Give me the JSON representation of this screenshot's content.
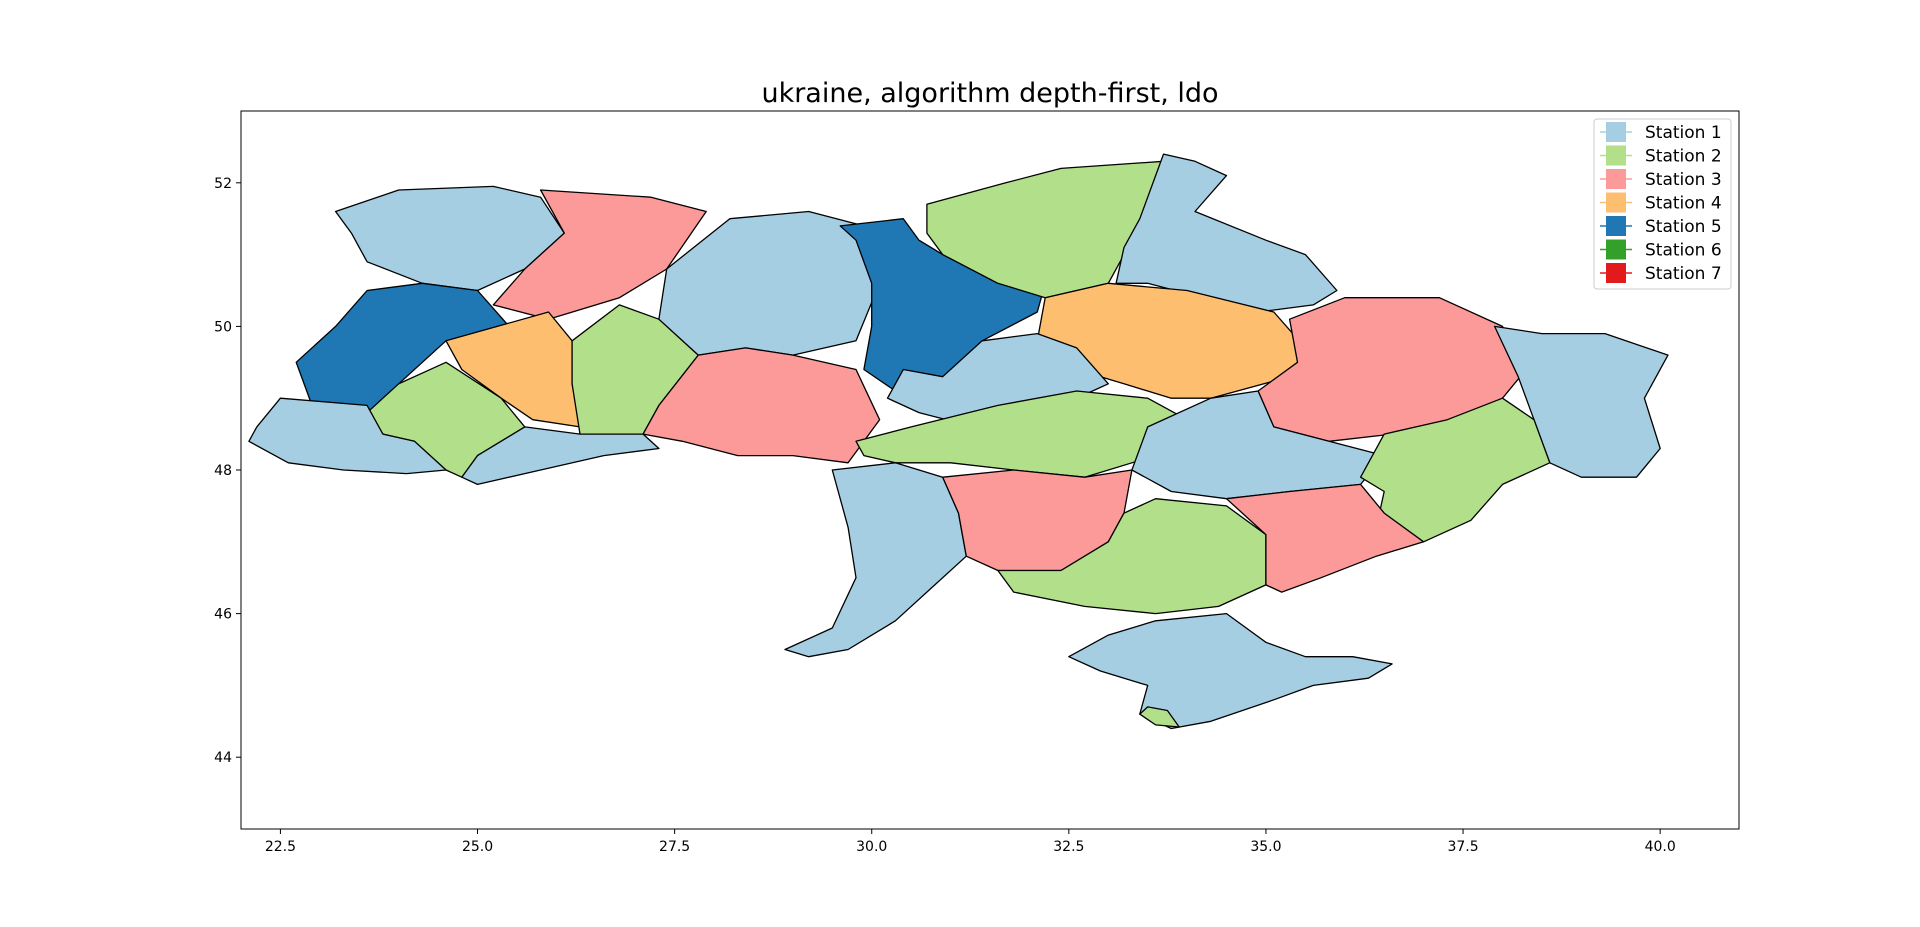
{
  "title": "ukraine, algorithm depth-first, ldo",
  "axes": {
    "xlim": [
      22.0,
      41.0
    ],
    "ylim": [
      43.0,
      53.0
    ],
    "xticks": [
      "22.5",
      "25.0",
      "27.5",
      "30.0",
      "32.5",
      "35.0",
      "37.5",
      "40.0"
    ],
    "yticks": [
      "44",
      "46",
      "48",
      "50",
      "52"
    ]
  },
  "legend": {
    "placement": "upper-right",
    "items": [
      {
        "label": "Station 1",
        "color": "#a6cee3"
      },
      {
        "label": "Station 2",
        "color": "#b2df8a"
      },
      {
        "label": "Station 3",
        "color": "#fb9a99"
      },
      {
        "label": "Station 4",
        "color": "#fdbf6f"
      },
      {
        "label": "Station 5",
        "color": "#1f78b4"
      },
      {
        "label": "Station 6",
        "color": "#33a02c"
      },
      {
        "label": "Station 7",
        "color": "#e31a1c"
      }
    ]
  },
  "regions": [
    {
      "station": 1,
      "poly": [
        [
          23.2,
          51.6
        ],
        [
          24.0,
          51.9
        ],
        [
          25.2,
          51.95
        ],
        [
          25.8,
          51.8
        ],
        [
          26.1,
          51.3
        ],
        [
          25.6,
          50.8
        ],
        [
          25.0,
          50.5
        ],
        [
          24.3,
          50.6
        ],
        [
          23.6,
          50.9
        ],
        [
          23.4,
          51.3
        ]
      ]
    },
    {
      "station": 3,
      "poly": [
        [
          25.8,
          51.9
        ],
        [
          27.2,
          51.8
        ],
        [
          27.9,
          51.6
        ],
        [
          27.4,
          50.8
        ],
        [
          26.8,
          50.4
        ],
        [
          25.9,
          50.1
        ],
        [
          25.2,
          50.3
        ],
        [
          25.6,
          50.8
        ],
        [
          26.1,
          51.3
        ]
      ]
    },
    {
      "station": 5,
      "poly": [
        [
          23.6,
          50.5
        ],
        [
          24.3,
          50.6
        ],
        [
          25.0,
          50.5
        ],
        [
          25.4,
          50.0
        ],
        [
          24.6,
          49.8
        ],
        [
          24.0,
          49.2
        ],
        [
          23.6,
          48.7
        ],
        [
          22.9,
          48.9
        ],
        [
          22.7,
          49.5
        ],
        [
          23.2,
          50.0
        ]
      ]
    },
    {
      "station": 4,
      "poly": [
        [
          24.6,
          49.8
        ],
        [
          25.9,
          50.2
        ],
        [
          26.2,
          49.8
        ],
        [
          26.2,
          49.2
        ],
        [
          26.3,
          48.6
        ],
        [
          25.7,
          48.7
        ],
        [
          25.3,
          49.0
        ],
        [
          24.8,
          49.4
        ]
      ]
    },
    {
      "station": 2,
      "poly": [
        [
          26.2,
          49.8
        ],
        [
          26.8,
          50.3
        ],
        [
          27.3,
          50.1
        ],
        [
          27.8,
          49.6
        ],
        [
          27.3,
          48.9
        ],
        [
          27.1,
          48.5
        ],
        [
          26.3,
          48.5
        ],
        [
          26.2,
          49.2
        ]
      ]
    },
    {
      "station": 2,
      "poly": [
        [
          23.6,
          48.8
        ],
        [
          24.0,
          49.2
        ],
        [
          24.6,
          49.5
        ],
        [
          25.3,
          49.0
        ],
        [
          25.6,
          48.6
        ],
        [
          25.0,
          48.2
        ],
        [
          24.8,
          47.9
        ],
        [
          24.6,
          48.0
        ],
        [
          24.2,
          48.4
        ],
        [
          23.8,
          48.5
        ]
      ]
    },
    {
      "station": 1,
      "poly": [
        [
          22.2,
          48.6
        ],
        [
          22.5,
          49.0
        ],
        [
          23.6,
          48.9
        ],
        [
          23.8,
          48.5
        ],
        [
          24.2,
          48.4
        ],
        [
          24.6,
          48.0
        ],
        [
          24.1,
          47.95
        ],
        [
          23.3,
          48.0
        ],
        [
          22.6,
          48.1
        ],
        [
          22.1,
          48.4
        ]
      ]
    },
    {
      "station": 1,
      "poly": [
        [
          25.6,
          48.6
        ],
        [
          26.3,
          48.5
        ],
        [
          27.1,
          48.5
        ],
        [
          27.3,
          48.3
        ],
        [
          26.6,
          48.2
        ],
        [
          25.8,
          48.0
        ],
        [
          25.0,
          47.8
        ],
        [
          24.8,
          47.9
        ],
        [
          25.0,
          48.2
        ]
      ]
    },
    {
      "station": 1,
      "poly": [
        [
          27.4,
          50.8
        ],
        [
          28.2,
          51.5
        ],
        [
          29.2,
          51.6
        ],
        [
          29.9,
          51.4
        ],
        [
          30.1,
          50.6
        ],
        [
          29.8,
          49.8
        ],
        [
          29.0,
          49.6
        ],
        [
          28.4,
          49.7
        ],
        [
          27.8,
          49.6
        ],
        [
          27.3,
          50.1
        ]
      ]
    },
    {
      "station": 3,
      "poly": [
        [
          27.3,
          48.9
        ],
        [
          27.8,
          49.6
        ],
        [
          28.4,
          49.7
        ],
        [
          29.0,
          49.6
        ],
        [
          29.8,
          49.4
        ],
        [
          30.1,
          48.7
        ],
        [
          29.7,
          48.1
        ],
        [
          29.0,
          48.2
        ],
        [
          28.3,
          48.2
        ],
        [
          27.6,
          48.4
        ],
        [
          27.1,
          48.5
        ]
      ]
    },
    {
      "station": 5,
      "poly": [
        [
          29.6,
          51.4
        ],
        [
          30.4,
          51.5
        ],
        [
          30.6,
          51.2
        ],
        [
          30.9,
          51.0
        ],
        [
          31.6,
          50.6
        ],
        [
          32.2,
          50.6
        ],
        [
          32.1,
          50.2
        ],
        [
          31.4,
          49.8
        ],
        [
          30.9,
          49.3
        ],
        [
          30.3,
          49.1
        ],
        [
          29.9,
          49.4
        ],
        [
          30.0,
          50.0
        ],
        [
          30.0,
          50.6
        ],
        [
          29.8,
          51.2
        ]
      ]
    },
    {
      "station": 2,
      "poly": [
        [
          30.7,
          51.7
        ],
        [
          31.7,
          52.0
        ],
        [
          32.4,
          52.2
        ],
        [
          33.7,
          52.3
        ],
        [
          33.4,
          51.4
        ],
        [
          33.0,
          50.6
        ],
        [
          32.2,
          50.4
        ],
        [
          31.6,
          50.6
        ],
        [
          30.9,
          51.0
        ],
        [
          30.7,
          51.3
        ]
      ]
    },
    {
      "station": 1,
      "poly": [
        [
          33.7,
          52.4
        ],
        [
          34.1,
          52.3
        ],
        [
          34.5,
          52.1
        ],
        [
          34.1,
          51.6
        ],
        [
          35.0,
          51.2
        ],
        [
          35.5,
          51.0
        ],
        [
          35.9,
          50.5
        ],
        [
          35.6,
          50.3
        ],
        [
          34.9,
          50.2
        ],
        [
          34.2,
          50.4
        ],
        [
          33.5,
          50.6
        ],
        [
          33.1,
          50.6
        ],
        [
          33.2,
          51.1
        ],
        [
          33.4,
          51.5
        ]
      ]
    },
    {
      "station": 4,
      "poly": [
        [
          32.2,
          50.4
        ],
        [
          33.0,
          50.6
        ],
        [
          34.0,
          50.5
        ],
        [
          35.1,
          50.2
        ],
        [
          35.5,
          49.7
        ],
        [
          35.3,
          49.3
        ],
        [
          34.3,
          49.0
        ],
        [
          33.8,
          49.0
        ],
        [
          33.2,
          49.2
        ],
        [
          32.6,
          49.4
        ],
        [
          32.1,
          49.8
        ]
      ]
    },
    {
      "station": 3,
      "poly": [
        [
          35.3,
          50.1
        ],
        [
          36.0,
          50.4
        ],
        [
          37.2,
          50.4
        ],
        [
          38.0,
          50.0
        ],
        [
          38.3,
          49.4
        ],
        [
          38.0,
          49.0
        ],
        [
          37.4,
          48.7
        ],
        [
          36.6,
          48.5
        ],
        [
          35.8,
          48.4
        ],
        [
          35.1,
          48.6
        ],
        [
          34.9,
          49.1
        ],
        [
          35.4,
          49.5
        ]
      ]
    },
    {
      "station": 1,
      "poly": [
        [
          37.9,
          50.0
        ],
        [
          38.5,
          49.9
        ],
        [
          39.3,
          49.9
        ],
        [
          40.1,
          49.6
        ],
        [
          39.8,
          49.0
        ],
        [
          40.0,
          48.3
        ],
        [
          39.7,
          47.9
        ],
        [
          39.0,
          47.9
        ],
        [
          38.6,
          48.1
        ],
        [
          38.4,
          48.7
        ],
        [
          38.2,
          49.3
        ]
      ]
    },
    {
      "station": 1,
      "poly": [
        [
          30.2,
          49.0
        ],
        [
          30.6,
          48.8
        ],
        [
          31.3,
          48.6
        ],
        [
          32.2,
          48.8
        ],
        [
          32.8,
          49.1
        ],
        [
          33.0,
          49.2
        ],
        [
          32.6,
          49.7
        ],
        [
          32.1,
          49.9
        ],
        [
          31.4,
          49.8
        ],
        [
          30.9,
          49.3
        ],
        [
          30.4,
          49.4
        ]
      ]
    },
    {
      "station": 2,
      "poly": [
        [
          29.8,
          48.4
        ],
        [
          30.5,
          48.6
        ],
        [
          31.6,
          48.9
        ],
        [
          32.6,
          49.1
        ],
        [
          33.5,
          49.0
        ],
        [
          34.0,
          48.7
        ],
        [
          33.6,
          48.2
        ],
        [
          32.7,
          47.9
        ],
        [
          31.8,
          48.0
        ],
        [
          31.0,
          48.1
        ],
        [
          30.3,
          48.1
        ],
        [
          29.9,
          48.2
        ]
      ]
    },
    {
      "station": 1,
      "poly": [
        [
          33.5,
          48.6
        ],
        [
          34.3,
          49.0
        ],
        [
          34.9,
          49.1
        ],
        [
          35.1,
          48.6
        ],
        [
          35.8,
          48.4
        ],
        [
          36.5,
          48.2
        ],
        [
          36.2,
          47.8
        ],
        [
          35.3,
          47.7
        ],
        [
          34.5,
          47.6
        ],
        [
          33.8,
          47.7
        ],
        [
          33.3,
          48.0
        ]
      ]
    },
    {
      "station": 2,
      "poly": [
        [
          36.5,
          48.5
        ],
        [
          37.3,
          48.7
        ],
        [
          38.0,
          49.0
        ],
        [
          38.4,
          48.7
        ],
        [
          38.6,
          48.1
        ],
        [
          38.0,
          47.8
        ],
        [
          37.6,
          47.3
        ],
        [
          37.0,
          47.0
        ],
        [
          36.4,
          47.2
        ],
        [
          36.5,
          47.7
        ],
        [
          36.2,
          47.9
        ]
      ]
    },
    {
      "station": 1,
      "poly": [
        [
          29.5,
          48.0
        ],
        [
          30.3,
          48.1
        ],
        [
          30.9,
          47.9
        ],
        [
          31.1,
          47.4
        ],
        [
          31.2,
          46.8
        ],
        [
          30.8,
          46.4
        ],
        [
          30.3,
          45.9
        ],
        [
          29.7,
          45.5
        ],
        [
          29.2,
          45.4
        ],
        [
          28.9,
          45.5
        ],
        [
          29.5,
          45.8
        ],
        [
          29.8,
          46.5
        ],
        [
          29.7,
          47.2
        ]
      ]
    },
    {
      "station": 3,
      "poly": [
        [
          30.9,
          47.9
        ],
        [
          31.8,
          48.0
        ],
        [
          32.7,
          47.9
        ],
        [
          33.3,
          48.0
        ],
        [
          33.2,
          47.4
        ],
        [
          33.0,
          47.0
        ],
        [
          32.4,
          46.6
        ],
        [
          31.6,
          46.6
        ],
        [
          31.2,
          46.8
        ],
        [
          31.1,
          47.4
        ]
      ]
    },
    {
      "station": 2,
      "poly": [
        [
          31.6,
          46.6
        ],
        [
          32.4,
          46.6
        ],
        [
          33.0,
          47.0
        ],
        [
          33.2,
          47.4
        ],
        [
          33.6,
          47.6
        ],
        [
          34.5,
          47.5
        ],
        [
          35.0,
          47.1
        ],
        [
          35.0,
          46.4
        ],
        [
          34.4,
          46.1
        ],
        [
          33.6,
          46.0
        ],
        [
          32.7,
          46.1
        ],
        [
          31.8,
          46.3
        ]
      ]
    },
    {
      "station": 3,
      "poly": [
        [
          34.5,
          47.6
        ],
        [
          35.3,
          47.7
        ],
        [
          36.2,
          47.8
        ],
        [
          36.5,
          47.4
        ],
        [
          37.0,
          47.0
        ],
        [
          36.4,
          46.8
        ],
        [
          35.7,
          46.5
        ],
        [
          35.2,
          46.3
        ],
        [
          35.0,
          46.4
        ],
        [
          35.0,
          47.1
        ]
      ]
    },
    {
      "station": 1,
      "poly": [
        [
          32.5,
          45.4
        ],
        [
          33.0,
          45.7
        ],
        [
          33.6,
          45.9
        ],
        [
          34.5,
          46.0
        ],
        [
          35.0,
          45.6
        ],
        [
          35.5,
          45.4
        ],
        [
          36.1,
          45.4
        ],
        [
          36.6,
          45.3
        ],
        [
          36.3,
          45.1
        ],
        [
          35.6,
          45.0
        ],
        [
          35.1,
          44.8
        ],
        [
          34.3,
          44.5
        ],
        [
          33.8,
          44.4
        ],
        [
          33.4,
          44.6
        ],
        [
          33.5,
          45.0
        ],
        [
          32.9,
          45.2
        ]
      ]
    },
    {
      "station": 2,
      "poly": [
        [
          33.4,
          44.6
        ],
        [
          33.6,
          44.45
        ],
        [
          33.9,
          44.42
        ],
        [
          33.75,
          44.65
        ],
        [
          33.5,
          44.7
        ]
      ]
    }
  ]
}
